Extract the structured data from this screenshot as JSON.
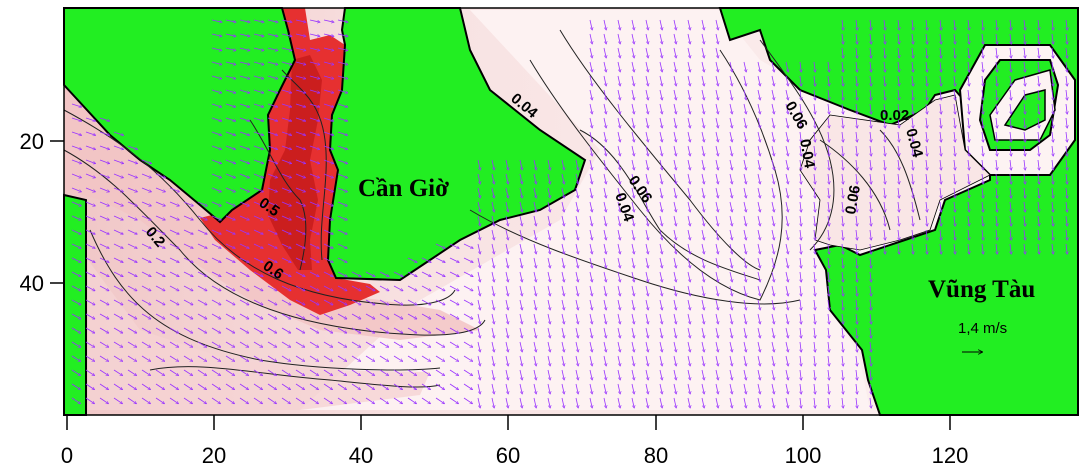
{
  "map": {
    "x_ticks": [
      "0",
      "20",
      "40",
      "60",
      "80",
      "100",
      "120"
    ],
    "y_ticks": [
      "20",
      "40"
    ],
    "places": {
      "can_gio": "Cần Giờ",
      "vung_tau": "Vũng Tàu"
    },
    "contour_labels": [
      "0.2",
      "0.5",
      "0.6",
      "0.04",
      "0.06",
      "0.04",
      "0.06",
      "0.04",
      "0.06",
      "0.02",
      "0.04"
    ],
    "scale_vector": "1,4 m/s",
    "colors": {
      "land": "#22ee22",
      "water_low": "#fcf0f0",
      "water_mid": "#f3c8c8",
      "water_high": "#e02424",
      "vectors": "#9933ff"
    }
  }
}
